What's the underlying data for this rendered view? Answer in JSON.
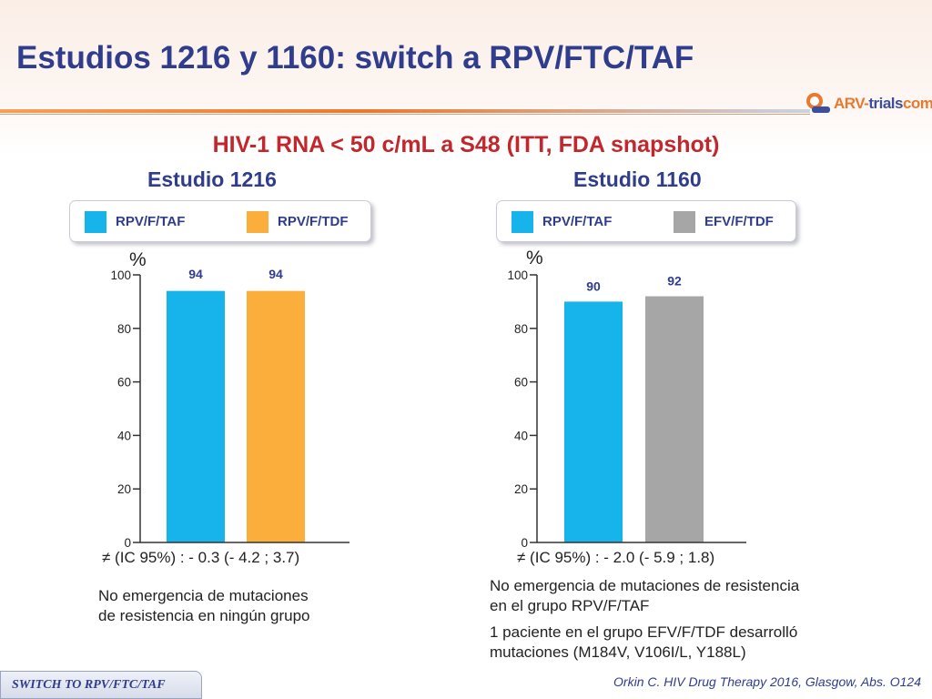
{
  "slide": {
    "title": "Estudios 1216 y 1160: switch a RPV/FTC/TAF",
    "subtitle": "HIV-1 RNA < 50 c/mL a S48 (ITT, FDA snapshot)",
    "logo": {
      "text_a": "ARV-",
      "text_b": "trials",
      "text_c": "com"
    },
    "footer_tag": "SWITCH TO RPV/FTC/TAF",
    "citation": "Orkin C. HIV Drug Therapy 2016, Glasgow, Abs. O124"
  },
  "colors": {
    "blue": "#16b4ea",
    "orange": "#fbae3c",
    "gray": "#a6a6a6",
    "navy": "#2f3d8c",
    "red": "#c1272d"
  },
  "left": {
    "study_title": "Estudio 1216",
    "legend": [
      {
        "label": "RPV/F/TAF",
        "color": "#16b4ea"
      },
      {
        "label": "RPV/F/TDF",
        "color": "#fbae3c"
      }
    ],
    "unit": "%",
    "diff": "≠ (IC 95%) : - 0.3 (- 4.2 ; 3.7)",
    "notes": [
      "No emergencia de mutaciones",
      "de resistencia en ningún grupo"
    ]
  },
  "right": {
    "study_title": "Estudio 1160",
    "legend": [
      {
        "label": "RPV/F/TAF",
        "color": "#16b4ea"
      },
      {
        "label": "EFV/F/TDF",
        "color": "#a6a6a6"
      }
    ],
    "unit": "%",
    "diff": "≠ (IC 95%) : - 2.0 (- 5.9 ; 1.8)",
    "notes1": [
      "No emergencia de mutaciones de resistencia",
      "en el grupo RPV/F/TAF"
    ],
    "notes2": [
      "1 paciente en el grupo EFV/F/TDF desarrolló",
      "mutaciones (M184V, V106I/L, Y188L)"
    ]
  },
  "chart_data": [
    {
      "type": "bar",
      "title": "Estudio 1216",
      "categories": [
        "RPV/F/TAF",
        "RPV/F/TDF"
      ],
      "values": [
        94,
        94
      ],
      "colors": [
        "#16b4ea",
        "#fbae3c"
      ],
      "ylabel": "%",
      "ylim": [
        0,
        100
      ],
      "yticks": [
        0,
        20,
        40,
        60,
        80,
        100
      ],
      "grid": false
    },
    {
      "type": "bar",
      "title": "Estudio 1160",
      "categories": [
        "RPV/F/TAF",
        "EFV/F/TDF"
      ],
      "values": [
        90,
        92
      ],
      "colors": [
        "#16b4ea",
        "#a6a6a6"
      ],
      "ylabel": "%",
      "ylim": [
        0,
        100
      ],
      "yticks": [
        0,
        20,
        40,
        60,
        80,
        100
      ],
      "grid": false
    }
  ]
}
